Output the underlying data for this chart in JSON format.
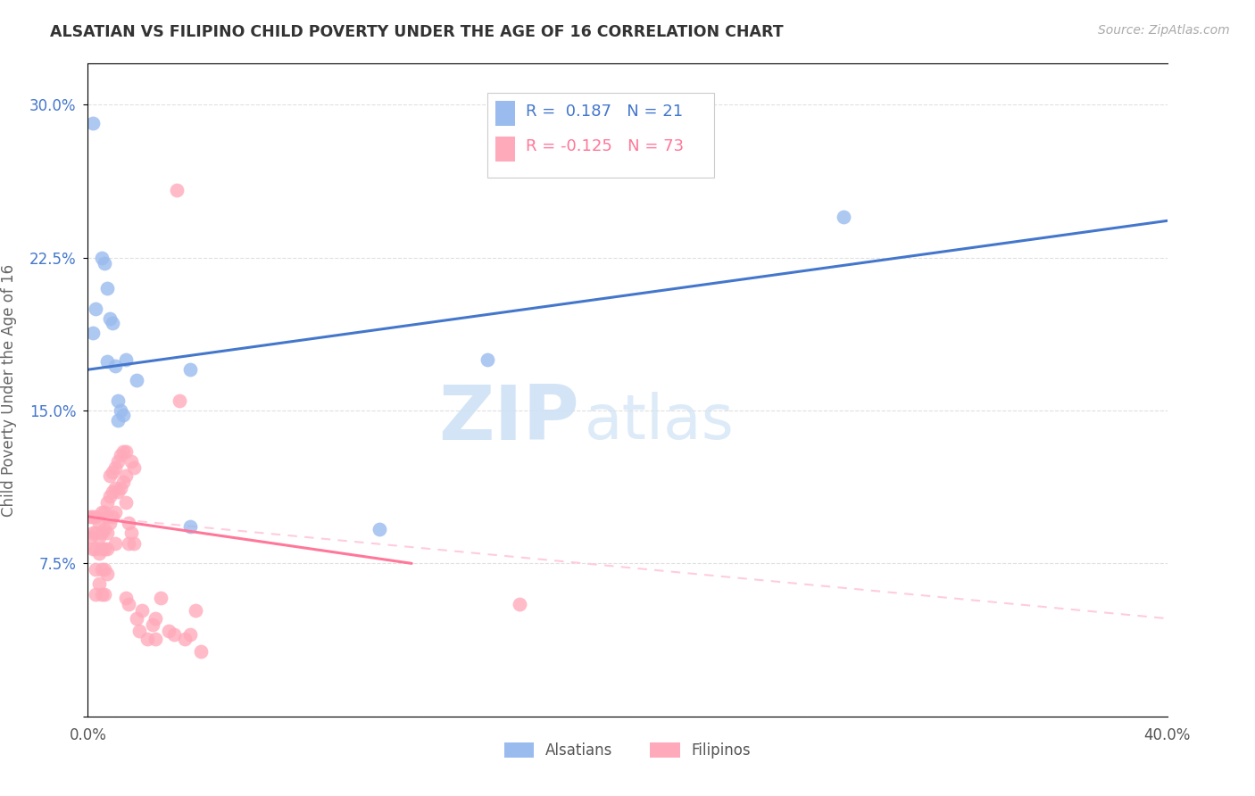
{
  "title": "ALSATIAN VS FILIPINO CHILD POVERTY UNDER THE AGE OF 16 CORRELATION CHART",
  "source": "Source: ZipAtlas.com",
  "ylabel": "Child Poverty Under the Age of 16",
  "xlim": [
    0.0,
    0.4
  ],
  "ylim": [
    0.0,
    0.32
  ],
  "yticks": [
    0.0,
    0.075,
    0.15,
    0.225,
    0.3
  ],
  "ytick_labels": [
    "",
    "7.5%",
    "15.0%",
    "22.5%",
    "30.0%"
  ],
  "xticks": [
    0.0,
    0.1,
    0.2,
    0.3,
    0.4
  ],
  "xtick_labels": [
    "0.0%",
    "",
    "",
    "",
    "40.0%"
  ],
  "legend_alsatian_R": "0.187",
  "legend_alsatian_N": "21",
  "legend_filipino_R": "-0.125",
  "legend_filipino_N": "73",
  "watermark_zip": "ZIP",
  "watermark_atlas": "atlas",
  "background_color": "#ffffff",
  "grid_color": "#dddddd",
  "alsatian_color": "#99bbee",
  "filipino_color": "#ffaabb",
  "alsatian_line_color": "#4477cc",
  "filipino_line_color": "#ff7799",
  "filipino_dashed_color": "#ffccdd",
  "alsatian_points_x": [
    0.002,
    0.003,
    0.005,
    0.006,
    0.007,
    0.007,
    0.008,
    0.009,
    0.01,
    0.011,
    0.011,
    0.012,
    0.013,
    0.014,
    0.018,
    0.038,
    0.038,
    0.108,
    0.148,
    0.28,
    0.002
  ],
  "alsatian_points_y": [
    0.291,
    0.2,
    0.225,
    0.222,
    0.21,
    0.174,
    0.195,
    0.193,
    0.172,
    0.155,
    0.145,
    0.15,
    0.148,
    0.175,
    0.165,
    0.17,
    0.093,
    0.092,
    0.175,
    0.245,
    0.188
  ],
  "filipino_points_x": [
    0.001,
    0.001,
    0.002,
    0.002,
    0.002,
    0.003,
    0.003,
    0.003,
    0.003,
    0.003,
    0.004,
    0.004,
    0.004,
    0.004,
    0.005,
    0.005,
    0.005,
    0.005,
    0.005,
    0.006,
    0.006,
    0.006,
    0.006,
    0.006,
    0.007,
    0.007,
    0.007,
    0.007,
    0.007,
    0.008,
    0.008,
    0.008,
    0.009,
    0.009,
    0.009,
    0.01,
    0.01,
    0.01,
    0.01,
    0.011,
    0.011,
    0.012,
    0.012,
    0.013,
    0.013,
    0.014,
    0.014,
    0.014,
    0.014,
    0.015,
    0.015,
    0.015,
    0.016,
    0.016,
    0.017,
    0.017,
    0.018,
    0.019,
    0.02,
    0.022,
    0.024,
    0.025,
    0.025,
    0.027,
    0.03,
    0.032,
    0.033,
    0.034,
    0.036,
    0.038,
    0.04,
    0.042,
    0.16
  ],
  "filipino_points_y": [
    0.098,
    0.088,
    0.098,
    0.09,
    0.082,
    0.098,
    0.09,
    0.082,
    0.072,
    0.06,
    0.095,
    0.088,
    0.08,
    0.065,
    0.1,
    0.09,
    0.082,
    0.072,
    0.06,
    0.1,
    0.092,
    0.082,
    0.072,
    0.06,
    0.105,
    0.098,
    0.09,
    0.082,
    0.07,
    0.118,
    0.108,
    0.095,
    0.12,
    0.11,
    0.098,
    0.122,
    0.112,
    0.1,
    0.085,
    0.125,
    0.11,
    0.128,
    0.112,
    0.13,
    0.115,
    0.13,
    0.118,
    0.105,
    0.058,
    0.095,
    0.085,
    0.055,
    0.125,
    0.09,
    0.122,
    0.085,
    0.048,
    0.042,
    0.052,
    0.038,
    0.045,
    0.048,
    0.038,
    0.058,
    0.042,
    0.04,
    0.258,
    0.155,
    0.038,
    0.04,
    0.052,
    0.032,
    0.055
  ],
  "alsatian_trend_x": [
    0.0,
    0.4
  ],
  "alsatian_trend_y": [
    0.17,
    0.243
  ],
  "filipino_solid_trend_x": [
    0.0,
    0.12
  ],
  "filipino_solid_trend_y": [
    0.098,
    0.075
  ],
  "filipino_dashed_trend_x": [
    0.0,
    0.4
  ],
  "filipino_dashed_trend_y": [
    0.098,
    0.048
  ]
}
